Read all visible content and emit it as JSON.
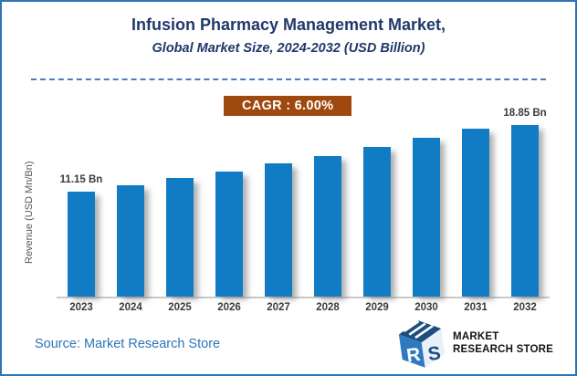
{
  "header": {
    "title": "Infusion Pharmacy Management Market,",
    "subtitle": "Global Market Size, 2024-2032 (USD Billion)"
  },
  "cagr": {
    "text": "CAGR :  6.00%",
    "bg_color": "#A0490F",
    "text_color": "#FFFFFF"
  },
  "chart_data": {
    "type": "bar",
    "title": "Infusion Pharmacy Management Market, Global Market Size, 2024-2032 (USD Billion)",
    "categories": [
      "2023",
      "2024",
      "2025",
      "2026",
      "2027",
      "2028",
      "2029",
      "2030",
      "2031",
      "2032"
    ],
    "values": [
      11.15,
      11.82,
      12.53,
      13.28,
      14.08,
      14.92,
      15.82,
      16.77,
      17.77,
      18.85
    ],
    "bar_labels": [
      "11.15 Bn",
      "",
      "",
      "",
      "",
      "",
      "",
      "",
      "",
      "18.85 Bn"
    ],
    "unit": "USD Bn",
    "cagr": "6.00%",
    "xlabel": "",
    "ylabel": "Revenue (USD Mn/Bn)",
    "ylim": [
      0,
      20
    ],
    "grid": false,
    "legend": false,
    "bar_color": "#117CC4",
    "axis_line_color": "#C9C9C9"
  },
  "footer": {
    "source": "Source: Market Research Store",
    "logo": {
      "line1": "MARKET",
      "line2": "RESEARCH STORE",
      "monogram_r": "R",
      "monogram_s": "S",
      "cube_top_color": "#1D4E7E",
      "cube_left_color": "#2E79C0",
      "cube_right_color": "#E8F1F9"
    }
  },
  "frame": {
    "border_color": "#2E75B6",
    "divider_color": "#4B7EC0"
  }
}
